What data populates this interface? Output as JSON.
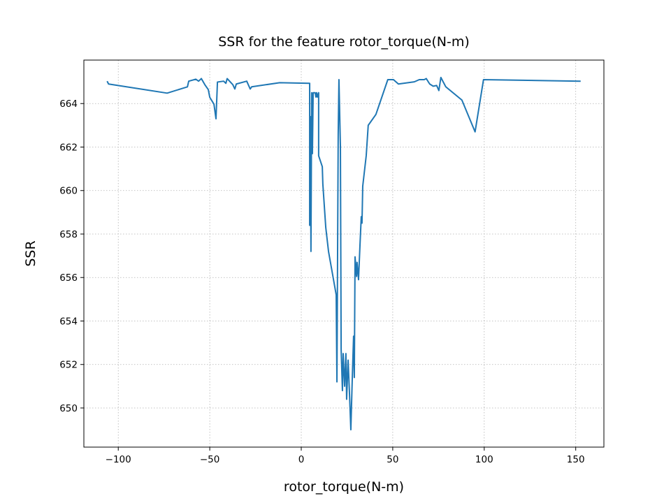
{
  "chart_data": {
    "type": "line",
    "title": "SSR for the feature rotor_torque(N-m)",
    "x_label": "rotor_torque(N-m)",
    "y_label": "SSR",
    "color": "#1f77b4",
    "grid": true,
    "x": [
      -106.1,
      -105.3,
      -73.3,
      -62.2,
      -61.5,
      -57.6,
      -56.1,
      -54.6,
      -52.7,
      -50.8,
      -50.0,
      -47.7,
      -46.6,
      -45.8,
      -42.4,
      -41.2,
      -40.5,
      -37.4,
      -36.3,
      -35.5,
      -29.8,
      -27.9,
      -27.1,
      -11.8,
      4.6,
      4.6,
      4.96,
      5.3,
      5.7,
      6.1,
      6.5,
      7.6,
      8.0,
      8.4,
      8.8,
      9.5,
      9.5,
      11.5,
      11.8,
      13.4,
      14.9,
      19.1,
      19.5,
      20.2,
      20.6,
      21.4,
      21.8,
      22.5,
      22.9,
      23.7,
      24.4,
      24.8,
      25.6,
      26.3,
      27.1,
      27.9,
      28.6,
      29.0,
      29.4,
      30.2,
      30.5,
      31.3,
      32.1,
      32.8,
      33.2,
      33.6,
      35.5,
      36.6,
      40.8,
      47.3,
      50.4,
      53.1,
      61.8,
      64.5,
      67.2,
      68.3,
      70.2,
      72.1,
      74.0,
      75.2,
      76.3,
      79.0,
      87.8,
      95.0,
      99.6,
      152.7
    ],
    "values": [
      665.03,
      664.9,
      664.48,
      664.77,
      665.03,
      665.12,
      665.03,
      665.15,
      664.87,
      664.64,
      664.29,
      663.97,
      663.3,
      664.99,
      665.03,
      664.93,
      665.15,
      664.87,
      664.67,
      664.9,
      665.03,
      664.67,
      664.77,
      664.96,
      664.93,
      658.4,
      663.4,
      657.2,
      664.5,
      661.7,
      664.5,
      664.5,
      664.3,
      664.5,
      664.3,
      664.5,
      661.6,
      661.1,
      660.3,
      658.3,
      657.2,
      655.2,
      651.2,
      662.6,
      665.1,
      662.0,
      652.7,
      650.8,
      652.5,
      651.0,
      652.5,
      650.4,
      652.2,
      650.8,
      649.0,
      651.4,
      653.3,
      651.4,
      656.95,
      656.05,
      656.7,
      655.9,
      657.5,
      658.8,
      658.5,
      660.2,
      661.6,
      663.0,
      663.5,
      665.1,
      665.1,
      664.9,
      665.0,
      665.1,
      665.1,
      665.15,
      664.9,
      664.8,
      664.83,
      664.6,
      665.2,
      664.77,
      664.16,
      662.7,
      665.1,
      665.03
    ],
    "xlim": [
      -118.8,
      165.4
    ],
    "ylim": [
      648.2,
      666.0
    ],
    "xticks": [
      {
        "value": -100,
        "label": "−100"
      },
      {
        "value": -50,
        "label": "−50"
      },
      0,
      50,
      100,
      150
    ],
    "yticks": [
      650,
      652,
      654,
      656,
      658,
      660,
      662,
      664
    ]
  }
}
